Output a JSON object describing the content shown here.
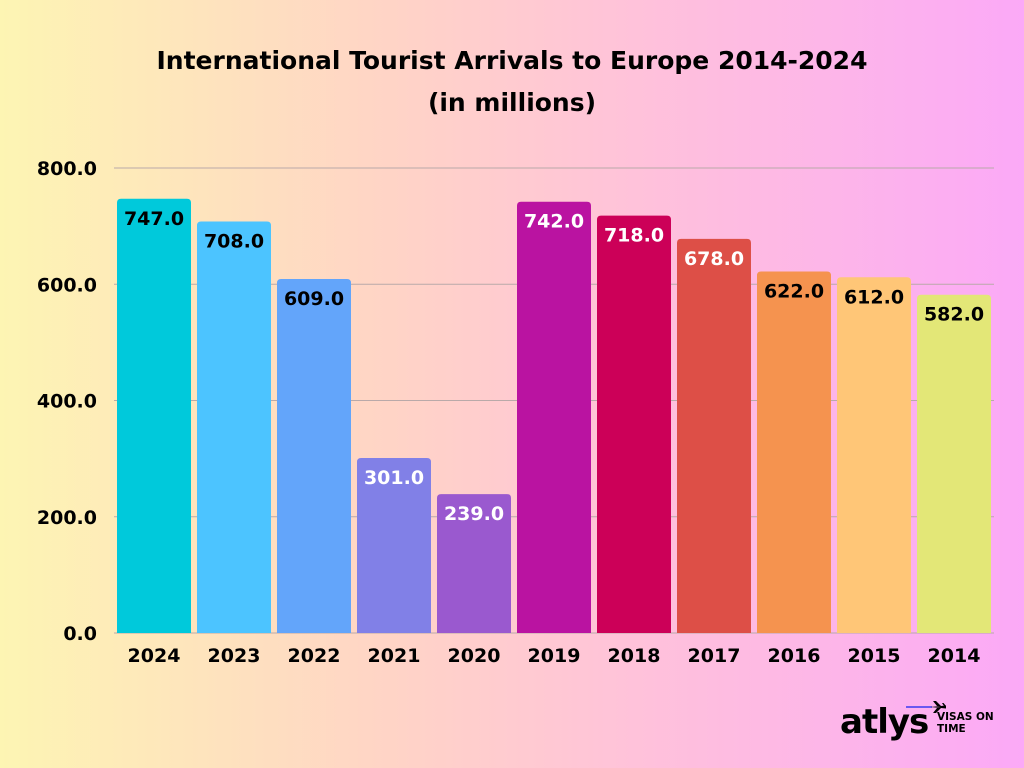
{
  "chart_data": {
    "type": "bar",
    "title": "International Tourist Arrivals to Europe 2014-2024",
    "subtitle": "(in millions)",
    "categories": [
      "2024",
      "2023",
      "2022",
      "2021",
      "2020",
      "2019",
      "2018",
      "2017",
      "2016",
      "2015",
      "2014"
    ],
    "values": [
      747.0,
      708.0,
      609.0,
      301.0,
      239.0,
      742.0,
      718.0,
      678.0,
      622.0,
      612.0,
      582.0
    ],
    "data_labels": [
      "747.0",
      "708.0",
      "609.0",
      "301.0",
      "239.0",
      "742.0",
      "718.0",
      "678.0",
      "622.0",
      "612.0",
      "582.0"
    ],
    "colors": [
      "#00c9db",
      "#4cc4ff",
      "#63a5fa",
      "#8180e7",
      "#9a59cf",
      "#ba13a1",
      "#cc0058",
      "#dd4f47",
      "#f5934f",
      "#ffc677",
      "#e3e777"
    ],
    "label_colors": [
      "#000000",
      "#000000",
      "#000000",
      "#ffffff",
      "#ffffff",
      "#ffffff",
      "#ffffff",
      "#ffffff",
      "#000000",
      "#000000",
      "#000000"
    ],
    "yticks": [
      0,
      200,
      400,
      600,
      800
    ],
    "ytick_labels": [
      "0.0",
      "200.0",
      "400.0",
      "600.0",
      "800.0"
    ],
    "ylim": [
      0,
      800
    ],
    "xlabel": "",
    "ylabel": "",
    "grid": true,
    "legend": "none"
  },
  "branding": {
    "logo_word": "atlys",
    "tagline_line1": "VISAS ON",
    "tagline_line2": "TIME",
    "plane_icon": "airplane-icon"
  }
}
